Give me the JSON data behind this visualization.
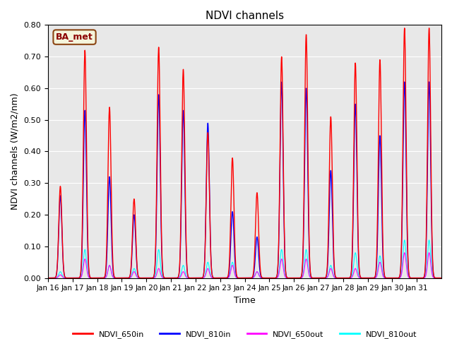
{
  "title": "NDVI channels",
  "xlabel": "Time",
  "ylabel": "NDVI channels (W/m2/nm)",
  "ylim": [
    0.0,
    0.8
  ],
  "yticks": [
    0.0,
    0.1,
    0.2,
    0.3,
    0.4,
    0.5,
    0.6,
    0.7,
    0.8
  ],
  "bg_color": "#e8e8e8",
  "annotation_text": "BA_met",
  "annotation_box_color": "#f5f5dc",
  "annotation_border_color": "#8B4513",
  "legend_entries": [
    "NDVI_650in",
    "NDVI_810in",
    "NDVI_650out",
    "NDVI_810out"
  ],
  "line_colors": {
    "NDVI_650in": "red",
    "NDVI_810in": "blue",
    "NDVI_650out": "magenta",
    "NDVI_810out": "cyan"
  },
  "x_tick_labels": [
    "Jan 16",
    "Jan 17",
    "Jan 18",
    "Jan 19",
    "Jan 20",
    "Jan 21",
    "Jan 22",
    "Jan 23",
    "Jan 24",
    "Jan 25",
    "Jan 26",
    "Jan 27",
    "Jan 28",
    "Jan 29",
    "Jan 30",
    "Jan 31"
  ],
  "num_days": 16,
  "amp_650in": [
    0.29,
    0.72,
    0.54,
    0.25,
    0.73,
    0.66,
    0.46,
    0.38,
    0.27,
    0.7,
    0.77,
    0.51,
    0.68,
    0.69,
    0.79,
    0.79
  ],
  "amp_810in": [
    0.26,
    0.53,
    0.32,
    0.2,
    0.58,
    0.53,
    0.49,
    0.21,
    0.13,
    0.62,
    0.6,
    0.34,
    0.55,
    0.45,
    0.62,
    0.62
  ],
  "amp_650out": [
    0.01,
    0.06,
    0.04,
    0.02,
    0.03,
    0.02,
    0.03,
    0.04,
    0.02,
    0.06,
    0.06,
    0.03,
    0.03,
    0.05,
    0.08,
    0.08
  ],
  "amp_810out": [
    0.02,
    0.09,
    0.04,
    0.03,
    0.09,
    0.04,
    0.05,
    0.05,
    0.02,
    0.09,
    0.09,
    0.04,
    0.08,
    0.07,
    0.12,
    0.12
  ]
}
